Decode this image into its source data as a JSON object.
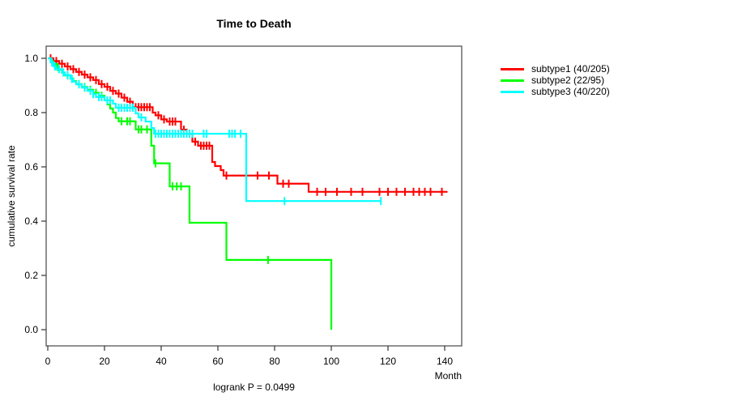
{
  "title": "Time to Death",
  "footnote": "logrank P = 0.0499",
  "axes": {
    "x_label": "Month",
    "y_label": "cumulative survival rate",
    "x_ticks": [
      0,
      20,
      40,
      60,
      80,
      100,
      120,
      140
    ],
    "y_ticks": [
      "0.0",
      "0.2",
      "0.4",
      "0.6",
      "0.8",
      "1.0"
    ]
  },
  "chart_data": {
    "type": "line",
    "variant": "kaplan-meier-step",
    "title": "Time to Death",
    "xlabel": "Month",
    "ylabel": "cumulative survival rate",
    "xlim": [
      0,
      146
    ],
    "ylim": [
      0.0,
      1.0
    ],
    "grid": false,
    "legend_position": "right-outside",
    "annotation": "logrank P = 0.0499",
    "series": [
      {
        "name": "subtype1 (40/205)",
        "color": "#ff0000",
        "end_time": 141,
        "steps": [
          [
            0,
            1.0
          ],
          [
            2,
            0.99
          ],
          [
            4,
            0.98
          ],
          [
            6,
            0.97
          ],
          [
            8,
            0.96
          ],
          [
            10,
            0.95
          ],
          [
            12,
            0.94
          ],
          [
            14,
            0.93
          ],
          [
            16,
            0.92
          ],
          [
            18,
            0.905
          ],
          [
            20,
            0.895
          ],
          [
            22,
            0.88
          ],
          [
            24,
            0.87
          ],
          [
            26,
            0.855
          ],
          [
            28,
            0.84
          ],
          [
            30,
            0.82
          ],
          [
            37,
            0.8
          ],
          [
            38,
            0.79
          ],
          [
            40,
            0.775
          ],
          [
            42,
            0.767
          ],
          [
            47,
            0.737
          ],
          [
            49,
            0.722
          ],
          [
            51,
            0.693
          ],
          [
            53,
            0.678
          ],
          [
            58,
            0.618
          ],
          [
            59,
            0.603
          ],
          [
            61,
            0.588
          ],
          [
            62,
            0.568
          ],
          [
            81,
            0.538
          ],
          [
            92,
            0.508
          ]
        ],
        "censor_times": [
          1,
          3,
          5,
          7,
          9,
          11,
          13,
          15,
          17,
          19,
          21,
          23,
          25,
          27,
          29,
          31,
          32,
          33,
          34,
          35,
          36,
          39,
          41,
          43,
          44,
          45,
          48,
          50,
          52,
          54,
          55,
          56,
          57,
          63,
          74,
          78,
          83,
          85,
          95,
          98,
          102,
          107,
          111,
          117,
          120,
          123,
          126,
          129,
          131,
          133,
          135,
          139
        ]
      },
      {
        "name": "subtype2 (22/95)",
        "color": "#00ff00",
        "end_time": 100,
        "steps": [
          [
            0,
            1.0
          ],
          [
            1,
            0.989
          ],
          [
            2,
            0.979
          ],
          [
            3,
            0.968
          ],
          [
            4,
            0.958
          ],
          [
            5,
            0.947
          ],
          [
            6,
            0.937
          ],
          [
            8,
            0.926
          ],
          [
            9,
            0.916
          ],
          [
            10,
            0.905
          ],
          [
            12,
            0.894
          ],
          [
            14,
            0.884
          ],
          [
            16,
            0.873
          ],
          [
            18,
            0.862
          ],
          [
            20,
            0.845
          ],
          [
            21,
            0.83
          ],
          [
            22,
            0.815
          ],
          [
            23,
            0.8
          ],
          [
            24,
            0.78
          ],
          [
            25,
            0.768
          ],
          [
            31,
            0.738
          ],
          [
            36.5,
            0.678
          ],
          [
            37.5,
            0.613
          ],
          [
            43,
            0.528
          ],
          [
            50,
            0.394
          ],
          [
            63,
            0.257
          ],
          [
            100,
            0.0
          ]
        ],
        "censor_times": [
          3.5,
          7,
          11,
          13,
          15,
          17,
          19,
          26,
          28,
          29,
          32,
          33,
          35,
          38,
          44,
          45.5,
          47,
          77.7
        ]
      },
      {
        "name": "subtype3 (40/220)",
        "color": "#00ffff",
        "end_time": 117.5,
        "steps": [
          [
            0,
            1.0
          ],
          [
            1,
            0.985
          ],
          [
            2,
            0.97
          ],
          [
            3,
            0.96
          ],
          [
            5,
            0.948
          ],
          [
            6,
            0.938
          ],
          [
            8,
            0.924
          ],
          [
            9,
            0.914
          ],
          [
            10,
            0.904
          ],
          [
            12,
            0.892
          ],
          [
            14,
            0.88
          ],
          [
            16,
            0.868
          ],
          [
            17,
            0.857
          ],
          [
            20,
            0.845
          ],
          [
            23,
            0.833
          ],
          [
            24,
            0.818
          ],
          [
            31,
            0.797
          ],
          [
            32,
            0.782
          ],
          [
            34.5,
            0.767
          ],
          [
            36.5,
            0.743
          ],
          [
            37.5,
            0.722
          ],
          [
            70,
            0.474
          ]
        ],
        "censor_times": [
          1.5,
          2.5,
          4,
          5.5,
          7,
          8.5,
          11,
          13,
          15,
          16,
          18,
          19,
          21,
          22,
          25,
          26,
          27,
          28,
          29,
          30,
          33,
          38,
          39,
          40,
          41,
          42,
          43,
          44,
          45,
          46,
          47,
          48,
          49,
          50,
          51,
          55,
          56,
          64,
          65,
          66,
          68,
          83.5,
          117.5
        ]
      }
    ]
  }
}
